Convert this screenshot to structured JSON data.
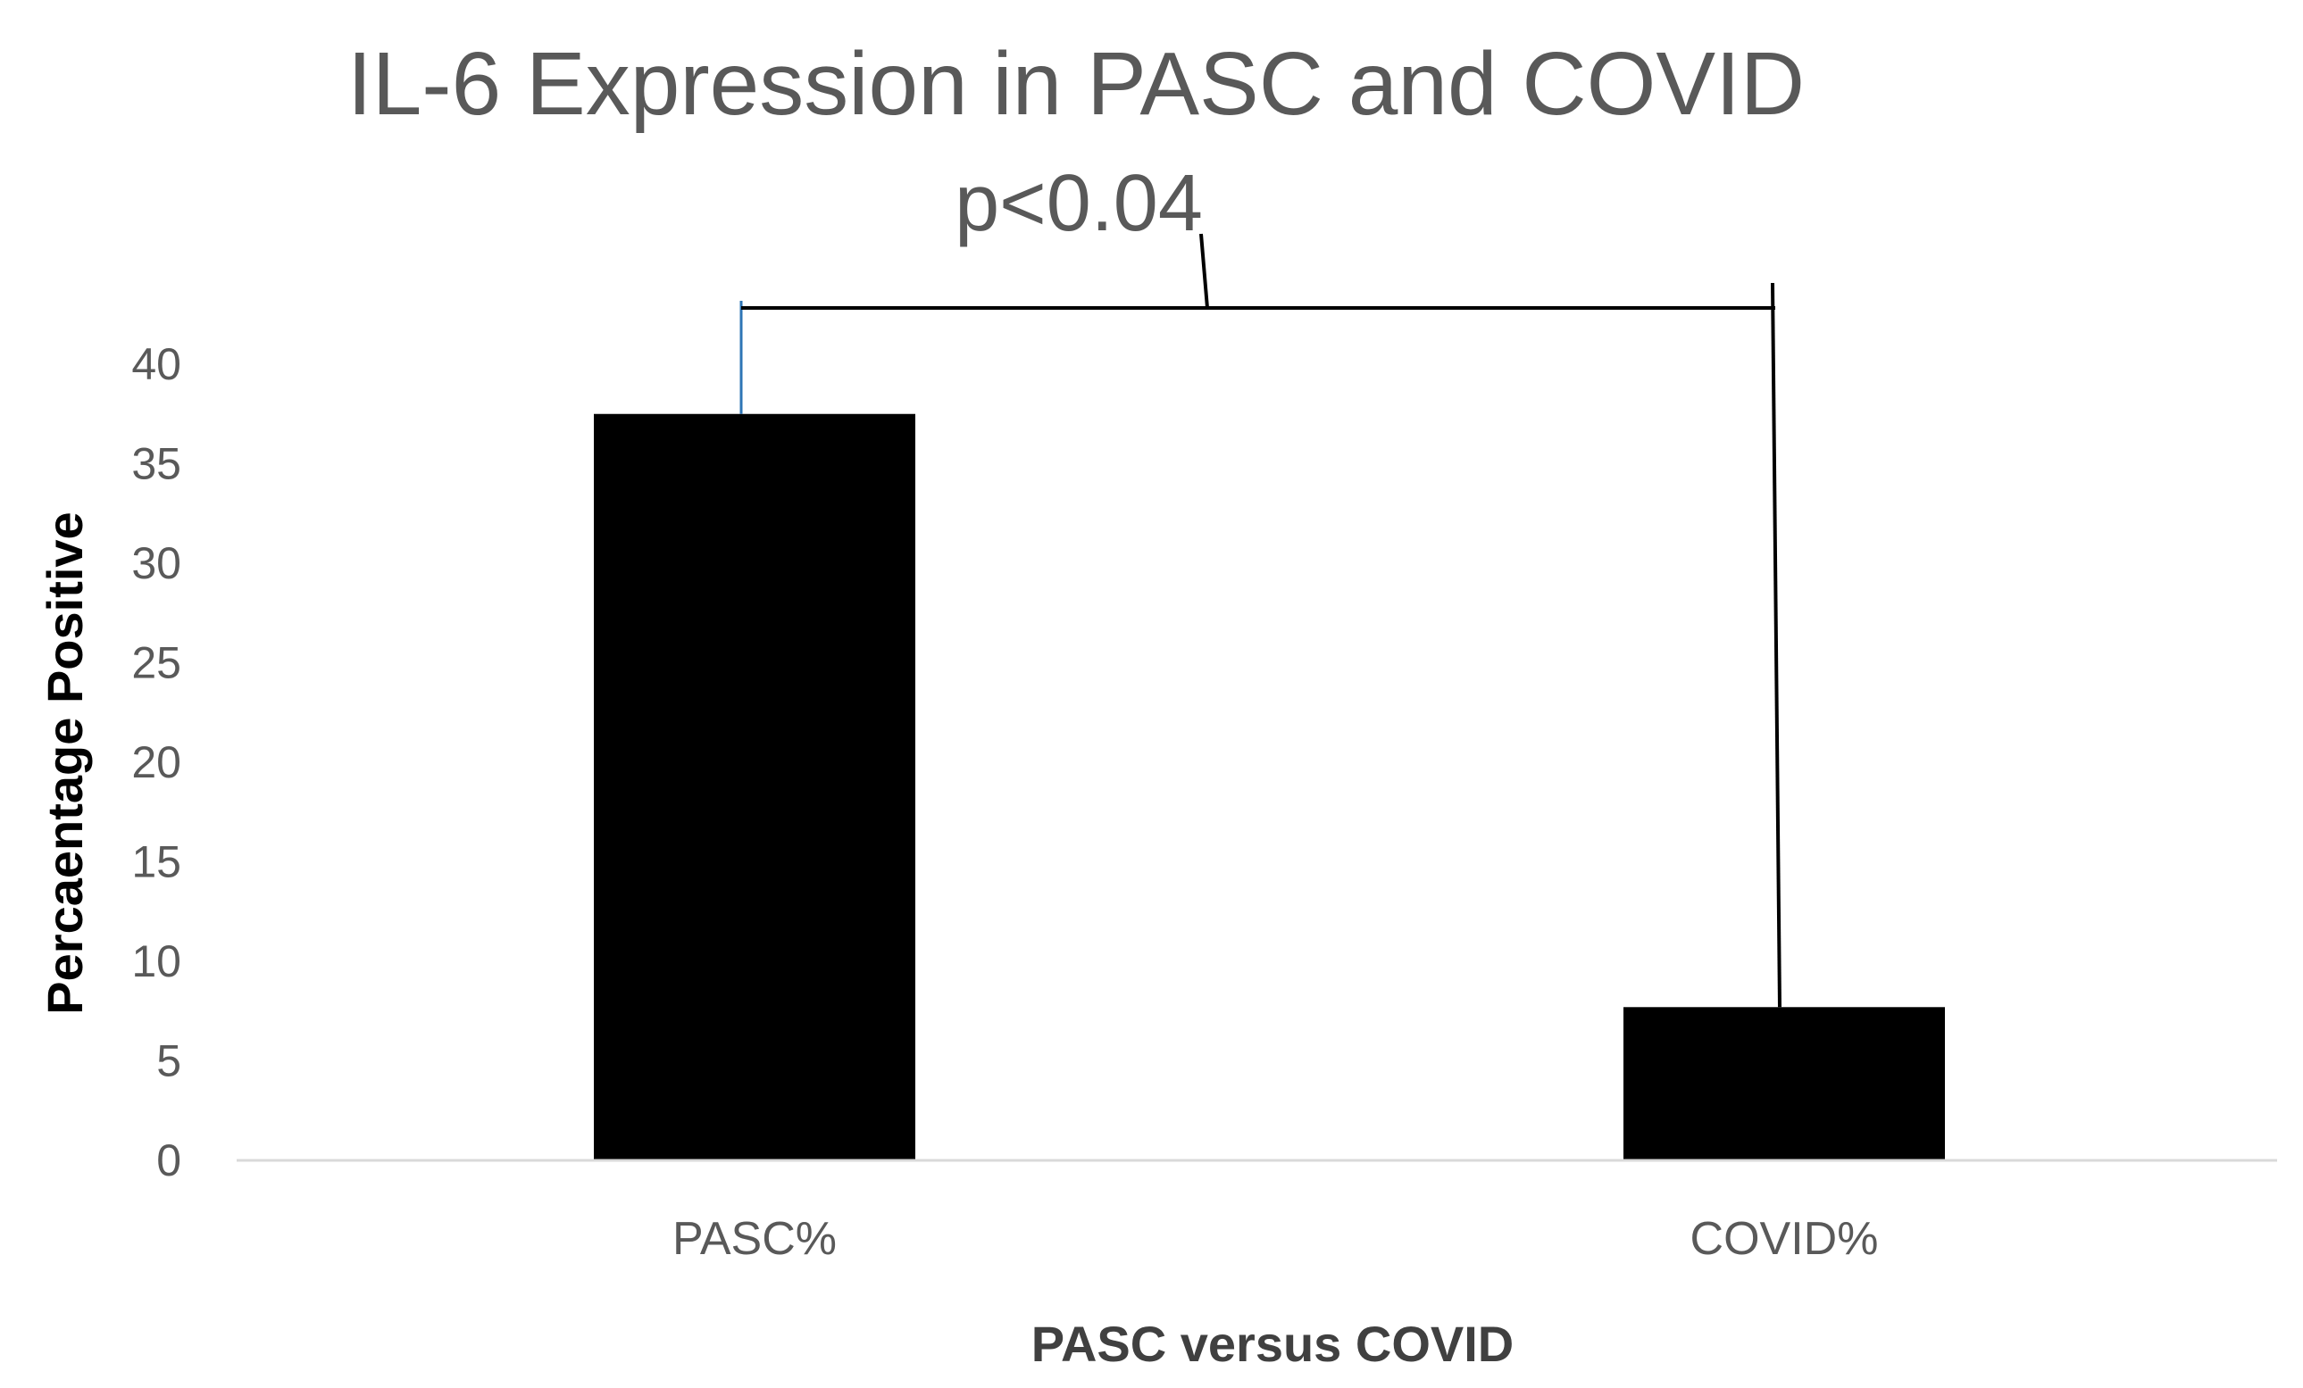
{
  "chart_data": {
    "type": "bar",
    "title": "IL-6 Expression in PASC and COVID",
    "annotation": "p<0.04",
    "xlabel": "PASC versus COVID",
    "ylabel": "Percaentage Positive",
    "categories": [
      "PASC%",
      "COVID%"
    ],
    "values": [
      37.5,
      7.7
    ],
    "ylim": [
      0,
      40
    ],
    "yticks": [
      "0",
      "5",
      "10",
      "15",
      "20",
      "25",
      "30",
      "35",
      "40"
    ],
    "grid": false,
    "legend": "none",
    "bar_color": "#000000",
    "axis_color": "#d9d9d9",
    "bracket_color": "#000000"
  }
}
